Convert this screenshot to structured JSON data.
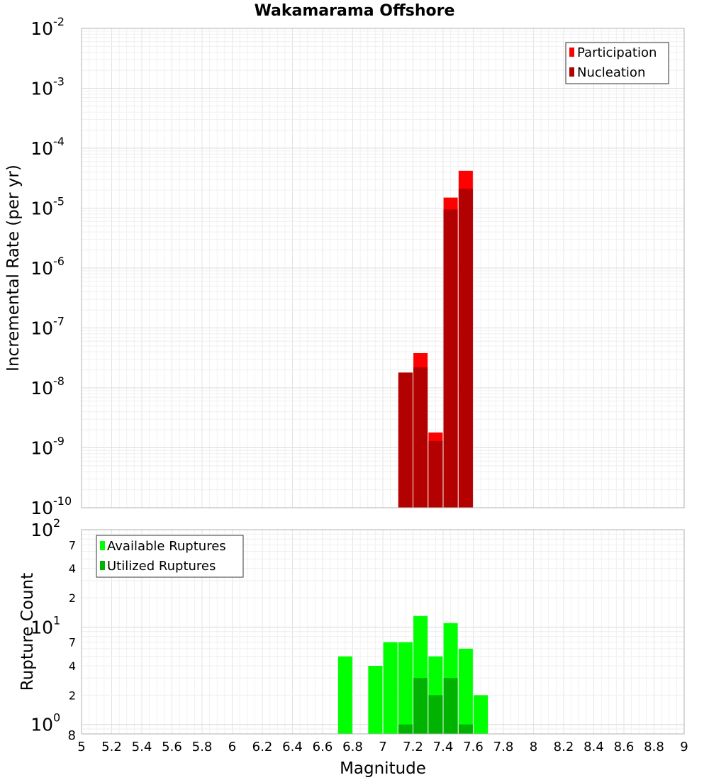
{
  "title": "Wakamarama Offshore",
  "chart_data": [
    {
      "type": "bar",
      "name_key": "rate",
      "ylabel": "Incremental Rate (per yr)",
      "yscale": "log",
      "ylim": [
        1e-10,
        0.01
      ],
      "xlim": [
        5,
        9
      ],
      "grid": true,
      "legend_position": "top-right",
      "y_ticks": [
        {
          "base": "10",
          "exp": "-10"
        },
        {
          "base": "10",
          "exp": "-9"
        },
        {
          "base": "10",
          "exp": "-8"
        },
        {
          "base": "10",
          "exp": "-7"
        },
        {
          "base": "10",
          "exp": "-6"
        },
        {
          "base": "10",
          "exp": "-5"
        },
        {
          "base": "10",
          "exp": "-4"
        },
        {
          "base": "10",
          "exp": "-3"
        },
        {
          "base": "10",
          "exp": "-2"
        }
      ],
      "series": [
        {
          "name": "Participation",
          "color": "#ff0000",
          "points": [
            {
              "x": 7.15,
              "y": 1.8e-08
            },
            {
              "x": 7.25,
              "y": 3.8e-08
            },
            {
              "x": 7.35,
              "y": 1.8e-09
            },
            {
              "x": 7.45,
              "y": 1.5e-05
            },
            {
              "x": 7.55,
              "y": 4.2e-05
            }
          ]
        },
        {
          "name": "Nucleation",
          "color": "#b30000",
          "points": [
            {
              "x": 7.15,
              "y": 1.8e-08
            },
            {
              "x": 7.25,
              "y": 2.2e-08
            },
            {
              "x": 7.35,
              "y": 1.3e-09
            },
            {
              "x": 7.45,
              "y": 9.5e-06
            },
            {
              "x": 7.55,
              "y": 2.1e-05
            }
          ]
        }
      ]
    },
    {
      "type": "bar",
      "name_key": "count",
      "xlabel": "Magnitude",
      "ylabel": "Rupture Count",
      "yscale": "log",
      "ylim": [
        0.8,
        100
      ],
      "xlim": [
        5,
        9
      ],
      "grid": true,
      "legend_position": "top-left",
      "x_ticks": [
        "5",
        "5.2",
        "5.4",
        "5.6",
        "5.8",
        "6",
        "6.2",
        "6.4",
        "6.6",
        "6.8",
        "7",
        "7.2",
        "7.4",
        "7.6",
        "7.8",
        "8",
        "8.2",
        "8.4",
        "8.6",
        "8.8",
        "9"
      ],
      "y_major_ticks": [
        {
          "base": "10",
          "exp": "0"
        },
        {
          "base": "10",
          "exp": "1"
        },
        {
          "base": "10",
          "exp": "2"
        }
      ],
      "y_minor_ticks": [
        "8",
        "2",
        "4",
        "7",
        "2",
        "4",
        "7"
      ],
      "series": [
        {
          "name": "Available Ruptures",
          "color": "#00ff00",
          "points": [
            {
              "x": 6.75,
              "y": 5
            },
            {
              "x": 6.95,
              "y": 4
            },
            {
              "x": 7.05,
              "y": 7
            },
            {
              "x": 7.15,
              "y": 7
            },
            {
              "x": 7.25,
              "y": 13
            },
            {
              "x": 7.35,
              "y": 5
            },
            {
              "x": 7.45,
              "y": 11
            },
            {
              "x": 7.55,
              "y": 6
            },
            {
              "x": 7.65,
              "y": 2
            }
          ]
        },
        {
          "name": "Utilized Ruptures",
          "color": "#00b300",
          "points": [
            {
              "x": 7.15,
              "y": 1
            },
            {
              "x": 7.25,
              "y": 3
            },
            {
              "x": 7.35,
              "y": 2
            },
            {
              "x": 7.45,
              "y": 3
            },
            {
              "x": 7.55,
              "y": 1
            }
          ]
        }
      ]
    }
  ]
}
